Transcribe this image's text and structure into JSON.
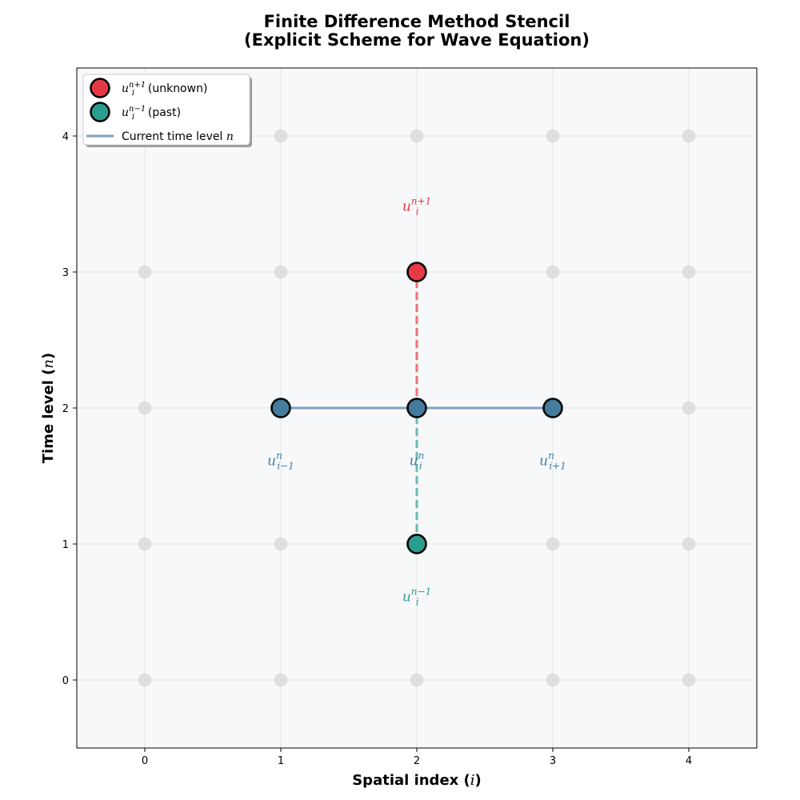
{
  "chart_data": {
    "type": "scatter",
    "title": [
      "Finite Difference Method Stencil",
      "(Explicit Scheme for Wave Equation)"
    ],
    "xlabel": "Spatial index (i)",
    "ylabel": "Time level (n)",
    "xlim": [
      -0.5,
      4.5
    ],
    "ylim": [
      -0.5,
      4.5
    ],
    "xticks": [
      0,
      1,
      2,
      3,
      4
    ],
    "yticks": [
      0,
      1,
      2,
      3,
      4
    ],
    "grid": true,
    "grid_points": {
      "x": [
        0,
        1,
        2,
        3,
        4
      ],
      "y": [
        0,
        1,
        2,
        3,
        4
      ],
      "color": "#d3d3d3"
    },
    "stencil_points": [
      {
        "name": "future",
        "x": 2,
        "y": 3,
        "color": "#e63946",
        "label_base": "u",
        "label_sub": "i",
        "label_sup": "n+1",
        "label_dy": 0.45,
        "label_color": "#e63946"
      },
      {
        "name": "current-left",
        "x": 1,
        "y": 2,
        "color": "#457b9d",
        "label_base": "u",
        "label_sub": "i−1",
        "label_sup": "n",
        "label_dy": -0.42,
        "label_color": "#457b9d"
      },
      {
        "name": "current-center",
        "x": 2,
        "y": 2,
        "color": "#457b9d",
        "label_base": "u",
        "label_sub": "i",
        "label_sup": "n",
        "label_dy": -0.42,
        "label_color": "#457b9d"
      },
      {
        "name": "current-right",
        "x": 3,
        "y": 2,
        "color": "#457b9d",
        "label_base": "u",
        "label_sub": "i+1",
        "label_sup": "n",
        "label_dy": -0.42,
        "label_color": "#457b9d"
      },
      {
        "name": "past",
        "x": 2,
        "y": 1,
        "color": "#2a9d8f",
        "label_base": "u",
        "label_sub": "i",
        "label_sup": "n−1",
        "label_dy": -0.42,
        "label_color": "#2a9d8f"
      }
    ],
    "lines": [
      {
        "name": "current-level-line",
        "x": [
          1,
          3
        ],
        "y": [
          2,
          2
        ],
        "color": "#7c9fc1",
        "style": "solid"
      },
      {
        "name": "future-connector",
        "x": [
          2,
          2
        ],
        "y": [
          2,
          3
        ],
        "color": "#e9737b",
        "style": "dashed"
      },
      {
        "name": "past-connector",
        "x": [
          2,
          2
        ],
        "y": [
          1,
          2
        ],
        "color": "#6cb9ad",
        "style": "dashed"
      }
    ],
    "legend": {
      "position": "top-left",
      "entries": [
        {
          "kind": "marker",
          "color": "#e63946",
          "base": "u",
          "sub": "i",
          "sup": "n+1",
          "text": " (unknown)"
        },
        {
          "kind": "marker",
          "color": "#2a9d8f",
          "base": "u",
          "sub": "i",
          "sup": "n−1",
          "text": " (past)"
        },
        {
          "kind": "line",
          "color": "#7c9fc1",
          "text": "Current time level ",
          "math": "n"
        }
      ]
    }
  }
}
